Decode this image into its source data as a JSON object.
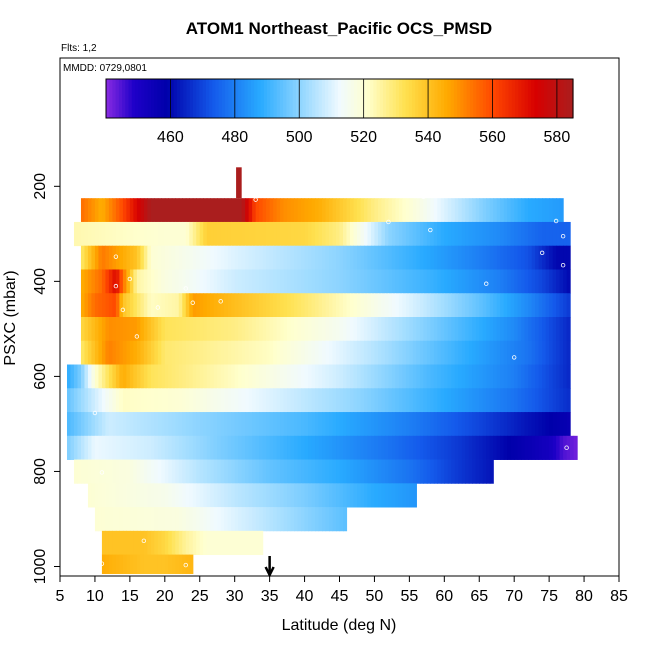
{
  "chart_data": {
    "type": "heatmap",
    "title": "ATOM1 Northeast_Pacific OCS_PMSD",
    "flights_label": "Flts: 1,2",
    "date_label": "MMDD: 0729,0801",
    "xlabel": "Latitude (deg N)",
    "ylabel": "PSXC (mbar)",
    "xlim": [
      5,
      85
    ],
    "ylim": [
      1020,
      -70
    ],
    "x_ticks": [
      "5",
      "10",
      "15",
      "20",
      "25",
      "30",
      "35",
      "40",
      "45",
      "50",
      "55",
      "60",
      "65",
      "70",
      "75",
      "80",
      "85"
    ],
    "y_ticks": [
      "200",
      "400",
      "600",
      "800",
      "1000"
    ],
    "colorbar": {
      "min": 440,
      "max": 585,
      "ticks": [
        "460",
        "480",
        "500",
        "520",
        "540",
        "560",
        "580"
      ]
    },
    "marker_latitude": 35,
    "bands": [
      {
        "p_top": 225,
        "p_bot": 275,
        "x0": 8,
        "x1": 77,
        "stops": [
          [
            8,
            555
          ],
          [
            11,
            545
          ],
          [
            14,
            560
          ],
          [
            18,
            585
          ],
          [
            31,
            585
          ],
          [
            33,
            560
          ],
          [
            37,
            550
          ],
          [
            42,
            545
          ],
          [
            50,
            528
          ],
          [
            55,
            520
          ],
          [
            60,
            510
          ],
          [
            66,
            498
          ],
          [
            72,
            488
          ],
          [
            77,
            485
          ]
        ]
      },
      {
        "p_top": 275,
        "p_bot": 325,
        "x0": 7,
        "x1": 78,
        "stops": [
          [
            7,
            524
          ],
          [
            20,
            520
          ],
          [
            23,
            520
          ],
          [
            26,
            537
          ],
          [
            40,
            535
          ],
          [
            45,
            528
          ],
          [
            52,
            500
          ],
          [
            60,
            488
          ],
          [
            68,
            482
          ],
          [
            74,
            475
          ],
          [
            78,
            475
          ]
        ]
      },
      {
        "p_top": 325,
        "p_bot": 375,
        "x0": 8,
        "x1": 78,
        "stops": [
          [
            8,
            530
          ],
          [
            11,
            553
          ],
          [
            16,
            540
          ],
          [
            18,
            520
          ],
          [
            30,
            510
          ],
          [
            45,
            500
          ],
          [
            55,
            490
          ],
          [
            65,
            480
          ],
          [
            72,
            472
          ],
          [
            76,
            460
          ],
          [
            78,
            460
          ]
        ]
      },
      {
        "p_top": 375,
        "p_bot": 425,
        "x0": 8,
        "x1": 78,
        "stops": [
          [
            8,
            545
          ],
          [
            11,
            555
          ],
          [
            13,
            572
          ],
          [
            14,
            555
          ],
          [
            16,
            525
          ],
          [
            20,
            518
          ],
          [
            30,
            508
          ],
          [
            45,
            500
          ],
          [
            58,
            490
          ],
          [
            68,
            480
          ],
          [
            74,
            470
          ],
          [
            78,
            460
          ]
        ]
      },
      {
        "p_top": 425,
        "p_bot": 475,
        "x0": 8,
        "x1": 78,
        "stops": [
          [
            8,
            545
          ],
          [
            10,
            555
          ],
          [
            13,
            560
          ],
          [
            14,
            540
          ],
          [
            18,
            522
          ],
          [
            22,
            525
          ],
          [
            24,
            548
          ],
          [
            31,
            540
          ],
          [
            40,
            530
          ],
          [
            55,
            510
          ],
          [
            65,
            495
          ],
          [
            72,
            482
          ],
          [
            78,
            468
          ]
        ]
      },
      {
        "p_top": 475,
        "p_bot": 525,
        "x0": 8,
        "x1": 78,
        "stops": [
          [
            8,
            535
          ],
          [
            12,
            550
          ],
          [
            16,
            548
          ],
          [
            20,
            532
          ],
          [
            30,
            528
          ],
          [
            45,
            515
          ],
          [
            58,
            498
          ],
          [
            70,
            482
          ],
          [
            78,
            465
          ]
        ]
      },
      {
        "p_top": 525,
        "p_bot": 575,
        "x0": 8,
        "x1": 78,
        "stops": [
          [
            8,
            530
          ],
          [
            12,
            552
          ],
          [
            16,
            545
          ],
          [
            20,
            530
          ],
          [
            35,
            522
          ],
          [
            50,
            505
          ],
          [
            62,
            490
          ],
          [
            72,
            478
          ],
          [
            78,
            465
          ]
        ]
      },
      {
        "p_top": 575,
        "p_bot": 625,
        "x0": 6,
        "x1": 78,
        "stops": [
          [
            6,
            488
          ],
          [
            8,
            498
          ],
          [
            10,
            520
          ],
          [
            14,
            545
          ],
          [
            18,
            532
          ],
          [
            30,
            522
          ],
          [
            45,
            508
          ],
          [
            58,
            492
          ],
          [
            70,
            480
          ],
          [
            78,
            465
          ]
        ]
      },
      {
        "p_top": 625,
        "p_bot": 675,
        "x0": 6,
        "x1": 78,
        "stops": [
          [
            6,
            495
          ],
          [
            9,
            505
          ],
          [
            14,
            522
          ],
          [
            22,
            520
          ],
          [
            35,
            510
          ],
          [
            48,
            500
          ],
          [
            60,
            488
          ],
          [
            70,
            478
          ],
          [
            78,
            466
          ]
        ]
      },
      {
        "p_top": 675,
        "p_bot": 725,
        "x0": 6,
        "x1": 78,
        "stops": [
          [
            6,
            492
          ],
          [
            12,
            508
          ],
          [
            25,
            500
          ],
          [
            40,
            492
          ],
          [
            55,
            480
          ],
          [
            65,
            470
          ],
          [
            72,
            462
          ],
          [
            78,
            456
          ]
        ]
      },
      {
        "p_top": 725,
        "p_bot": 775,
        "x0": 6,
        "x1": 79,
        "stops": [
          [
            6,
            498
          ],
          [
            10,
            512
          ],
          [
            18,
            508
          ],
          [
            28,
            498
          ],
          [
            40,
            488
          ],
          [
            52,
            478
          ],
          [
            62,
            468
          ],
          [
            70,
            458
          ],
          [
            75,
            452
          ],
          [
            77,
            445
          ],
          [
            79,
            442
          ]
        ]
      },
      {
        "p_top": 775,
        "p_bot": 825,
        "x0": 7,
        "x1": 67,
        "stops": [
          [
            7,
            520
          ],
          [
            15,
            518
          ],
          [
            25,
            505
          ],
          [
            35,
            495
          ],
          [
            45,
            488
          ],
          [
            55,
            478
          ],
          [
            62,
            468
          ],
          [
            67,
            462
          ]
        ]
      },
      {
        "p_top": 825,
        "p_bot": 875,
        "x0": 9,
        "x1": 56,
        "stops": [
          [
            9,
            520
          ],
          [
            20,
            516
          ],
          [
            30,
            506
          ],
          [
            40,
            498
          ],
          [
            50,
            488
          ],
          [
            56,
            484
          ]
        ]
      },
      {
        "p_top": 875,
        "p_bot": 925,
        "x0": 10,
        "x1": 46,
        "stops": [
          [
            10,
            520
          ],
          [
            22,
            518
          ],
          [
            32,
            508
          ],
          [
            40,
            500
          ],
          [
            46,
            494
          ]
        ]
      },
      {
        "p_top": 925,
        "p_bot": 975,
        "x0": 11,
        "x1": 34,
        "stops": [
          [
            11,
            540
          ],
          [
            17,
            540
          ],
          [
            20,
            535
          ],
          [
            23,
            526
          ],
          [
            26,
            520
          ],
          [
            34,
            520
          ]
        ]
      },
      {
        "p_top": 975,
        "p_bot": 1015,
        "x0": 11,
        "x1": 24,
        "stops": [
          [
            11,
            545
          ],
          [
            17,
            540
          ],
          [
            20,
            540
          ],
          [
            24,
            543
          ]
        ]
      }
    ],
    "extra_cells": [
      {
        "x0": 30.2,
        "x1": 31.0,
        "p_top": 160,
        "p_bot": 225,
        "value": 585
      }
    ],
    "points": [
      [
        21.5,
        218
      ],
      [
        33,
        228
      ],
      [
        57,
        222
      ],
      [
        68,
        218
      ],
      [
        74,
        220
      ],
      [
        52,
        275
      ],
      [
        58,
        292
      ],
      [
        76,
        273
      ],
      [
        77,
        305
      ],
      [
        13,
        348
      ],
      [
        74,
        340
      ],
      [
        77,
        366
      ],
      [
        13,
        410
      ],
      [
        15,
        395
      ],
      [
        66,
        405
      ],
      [
        23,
        415
      ],
      [
        14,
        460
      ],
      [
        19,
        455
      ],
      [
        24,
        445
      ],
      [
        28,
        442
      ],
      [
        16,
        516
      ],
      [
        70,
        560
      ],
      [
        10,
        677
      ],
      [
        77.5,
        750
      ],
      [
        11,
        802
      ],
      [
        17,
        946
      ],
      [
        11,
        994
      ],
      [
        23,
        997
      ]
    ]
  }
}
